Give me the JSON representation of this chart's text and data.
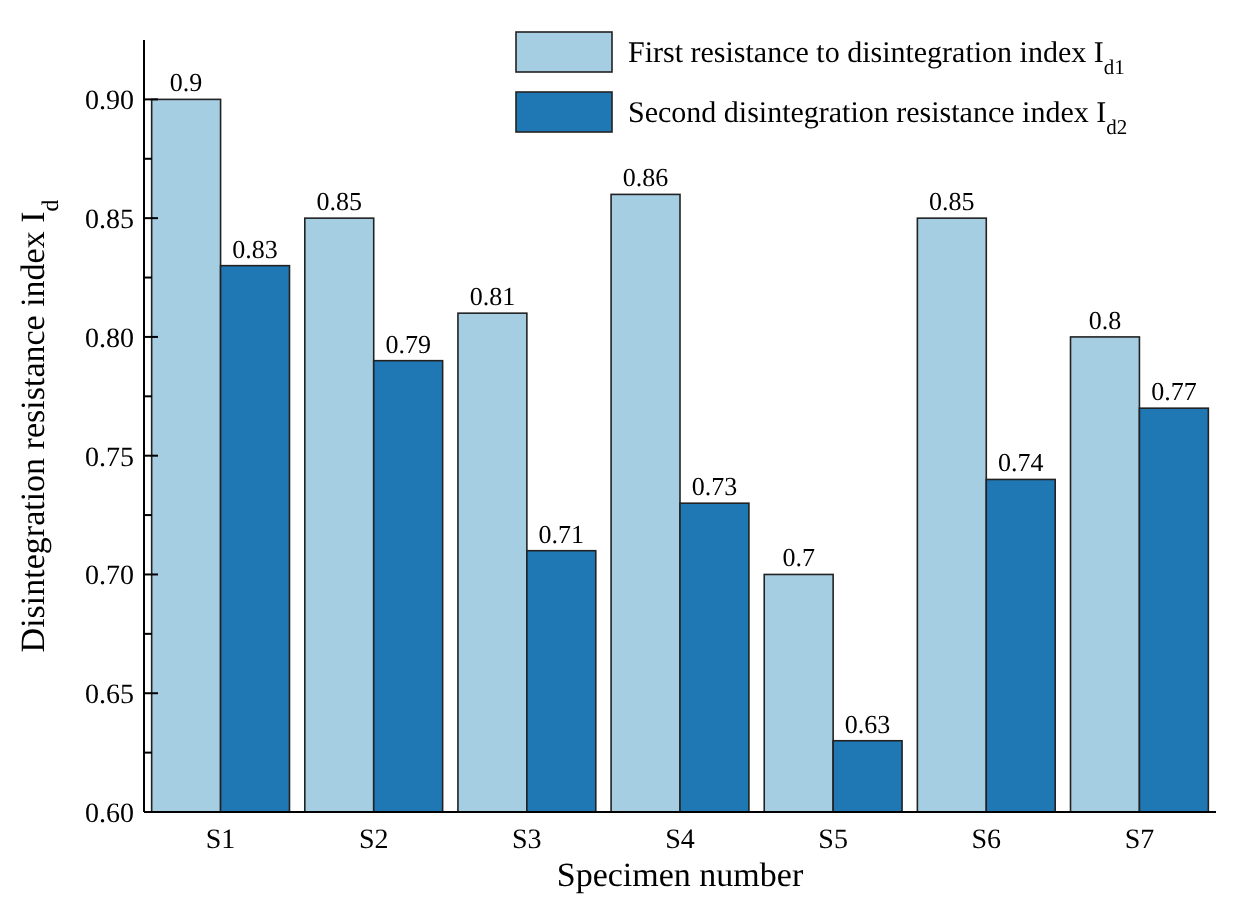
{
  "chart_data": {
    "type": "bar",
    "xlabel": "Specimen number",
    "ylabel": "Disintegration resistance index I$_{d}$",
    "categories": [
      "S1",
      "S2",
      "S3",
      "S4",
      "S5",
      "S6",
      "S7"
    ],
    "series": [
      {
        "name": "First resistance to disintegration index I$_{d1}$",
        "color": "#a6cee3",
        "values": [
          0.9,
          0.85,
          0.81,
          0.86,
          0.7,
          0.85,
          0.8
        ]
      },
      {
        "name": "Second disintegration resistance index I$_{d2}$",
        "color": "#1f78b4",
        "values": [
          0.83,
          0.79,
          0.71,
          0.73,
          0.63,
          0.74,
          0.77
        ]
      }
    ],
    "ylim": [
      0.6,
      0.925
    ],
    "yticks": [
      "0.60",
      {
        "value": 0.625,
        "label": null
      },
      "0.65",
      {
        "value": 0.675,
        "label": null
      },
      "0.70",
      {
        "value": 0.725,
        "label": null
      },
      "0.75",
      {
        "value": 0.775,
        "label": null
      },
      "0.80",
      {
        "value": 0.825,
        "label": null
      },
      "0.85",
      {
        "value": 0.875,
        "label": null
      },
      "0.90"
    ],
    "data_labels": true,
    "legend": "top right",
    "grid": false
  }
}
